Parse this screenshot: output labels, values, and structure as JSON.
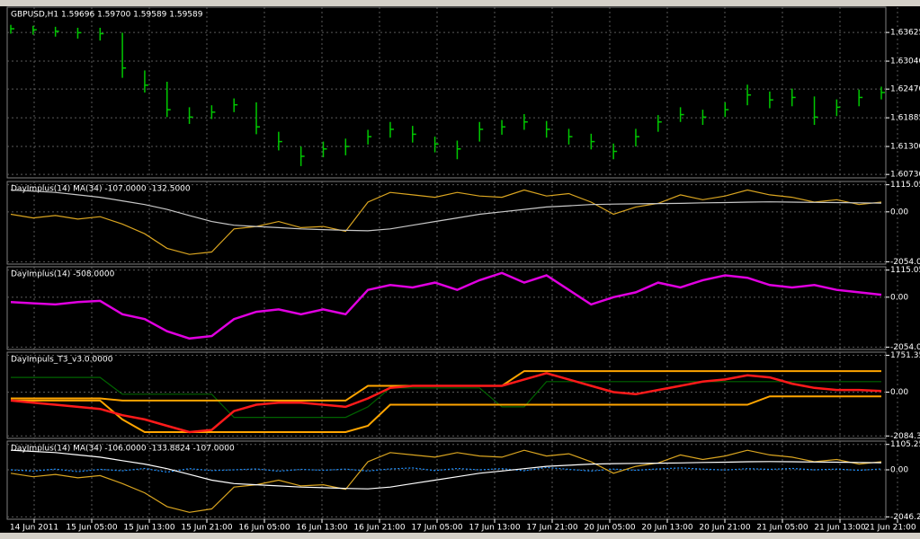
{
  "chart_data": [
    {
      "type": "ohlc",
      "title": "GBPUSD,H1  1.59696 1.59700 1.59589 1.59589",
      "color": "#00c800",
      "ylim": [
        1.6066,
        1.6414
      ],
      "yticks": [
        1.63625,
        {
          "value": 1.6304,
          "label": "1.63040"
        },
        {
          "value": 1.6247,
          "label": "1.62470"
        },
        1.61885,
        {
          "value": 1.613,
          "label": "1.61300"
        },
        {
          "value": 1.6073,
          "label": "1.60730"
        }
      ],
      "high": [
        1.6378,
        1.6376,
        1.6374,
        1.6372,
        1.6372,
        1.6362,
        1.6285,
        1.6262,
        1.621,
        1.6214,
        1.6228,
        1.622,
        1.616,
        1.613,
        1.614,
        1.6146,
        1.6164,
        1.618,
        1.6172,
        1.615,
        1.6142,
        1.618,
        1.6184,
        1.6196,
        1.6182,
        1.6166,
        1.6156,
        1.6136,
        1.6166,
        1.6194,
        1.621,
        1.6205,
        1.622,
        1.6256,
        1.6242,
        1.6248,
        1.6232,
        1.6226,
        1.6246,
        1.6252
      ],
      "low": [
        1.636,
        1.6358,
        1.6354,
        1.635,
        1.6346,
        1.627,
        1.624,
        1.619,
        1.6176,
        1.6186,
        1.62,
        1.6155,
        1.6122,
        1.609,
        1.6108,
        1.6112,
        1.6134,
        1.6148,
        1.6138,
        1.6118,
        1.6104,
        1.614,
        1.6154,
        1.6164,
        1.6148,
        1.6134,
        1.6124,
        1.6104,
        1.613,
        1.616,
        1.618,
        1.6174,
        1.619,
        1.6214,
        1.6208,
        1.6212,
        1.6174,
        1.6192,
        1.6212,
        1.6226
      ],
      "close": [
        1.637,
        1.6368,
        1.6365,
        1.6362,
        1.636,
        1.629,
        1.6255,
        1.6205,
        1.619,
        1.62,
        1.6215,
        1.617,
        1.614,
        1.611,
        1.6125,
        1.613,
        1.615,
        1.6165,
        1.6155,
        1.6135,
        1.6125,
        1.6165,
        1.617,
        1.618,
        1.6165,
        1.615,
        1.614,
        1.612,
        1.615,
        1.618,
        1.6195,
        1.619,
        1.6205,
        1.6235,
        1.6225,
        1.623,
        1.619,
        1.621,
        1.623,
        1.624
      ]
    },
    {
      "type": "line",
      "title": "DayImplus(14) MA(34) -107.0000 -132.5000",
      "ylim": [
        -2150,
        1250
      ],
      "yticks": [
        1115.05,
        {
          "value": 0,
          "label": "0.00"
        },
        -2054.05
      ],
      "series": [
        {
          "color": "#daa520",
          "values": [
            -100,
            -250,
            -150,
            -300,
            -200,
            -500,
            -900,
            -1500,
            -1750,
            -1650,
            -700,
            -600,
            -400,
            -650,
            -600,
            -800,
            400,
            800,
            700,
            600,
            800,
            650,
            600,
            900,
            650,
            750,
            400,
            -100,
            200,
            350,
            700,
            500,
            650,
            900,
            700,
            600,
            400,
            500,
            300,
            400
          ]
        },
        {
          "color": "#c8c8c8",
          "values": [
            900,
            850,
            800,
            700,
            600,
            450,
            300,
            100,
            -150,
            -400,
            -550,
            -600,
            -650,
            -700,
            -730,
            -760,
            -780,
            -700,
            -550,
            -400,
            -250,
            -100,
            0,
            100,
            200,
            250,
            300,
            320,
            330,
            340,
            350,
            370,
            380,
            400,
            410,
            400,
            390,
            380,
            370,
            360
          ]
        }
      ]
    },
    {
      "type": "line",
      "title": "DayImplus(14) -508.0000",
      "ylim": [
        -2150,
        1250
      ],
      "yticks": [
        1115.05,
        {
          "value": 0,
          "label": "0.00"
        },
        -2054.05
      ],
      "series": [
        {
          "color": "#e000e0",
          "width": 2.5,
          "values": [
            -200,
            -250,
            -300,
            -200,
            -150,
            -700,
            -900,
            -1400,
            -1700,
            -1600,
            -900,
            -600,
            -500,
            -700,
            -500,
            -700,
            300,
            500,
            400,
            600,
            300,
            700,
            1000,
            600,
            900,
            300,
            -300,
            0,
            200,
            600,
            400,
            700,
            900,
            800,
            500,
            400,
            500,
            300,
            200,
            100
          ]
        }
      ]
    },
    {
      "type": "line",
      "title": "DayImpuls_T3_v3.0.0000",
      "ylim": [
        -2200,
        1900
      ],
      "yticks": [
        1751.35,
        {
          "value": 0,
          "label": "0.00"
        },
        -2084.35
      ],
      "series": [
        {
          "color": "#006400",
          "values": [
            700,
            700,
            700,
            700,
            700,
            -100,
            -100,
            -100,
            -100,
            -100,
            -1200,
            -1200,
            -1200,
            -1200,
            -1200,
            -1200,
            -700,
            200,
            200,
            200,
            200,
            200,
            -700,
            -700,
            500,
            500,
            500,
            500,
            500,
            500,
            500,
            500,
            500,
            500,
            500,
            500,
            500,
            500,
            500,
            500
          ]
        },
        {
          "color": "#ffa500",
          "width": 2,
          "values": [
            -300,
            -300,
            -300,
            -300,
            -300,
            -400,
            -400,
            -400,
            -400,
            -400,
            -400,
            -400,
            -400,
            -400,
            -400,
            -400,
            300,
            300,
            300,
            300,
            300,
            300,
            300,
            1000,
            1000,
            1000,
            1000,
            1000,
            1000,
            1000,
            1000,
            1000,
            1000,
            1000,
            1000,
            1000,
            1000,
            1000,
            1000,
            1000
          ]
        },
        {
          "color": "#ffa500",
          "width": 2,
          "values": [
            -400,
            -400,
            -400,
            -400,
            -400,
            -1300,
            -1900,
            -1900,
            -1900,
            -1900,
            -1900,
            -1900,
            -1900,
            -1900,
            -1900,
            -1900,
            -1600,
            -600,
            -600,
            -600,
            -600,
            -600,
            -600,
            -600,
            -600,
            -600,
            -600,
            -600,
            -600,
            -600,
            -600,
            -600,
            -600,
            -600,
            -200,
            -200,
            -200,
            -200,
            -200,
            -200
          ]
        },
        {
          "color": "#ff1a1a",
          "width": 2.5,
          "values": [
            -400,
            -500,
            -600,
            -700,
            -800,
            -1100,
            -1300,
            -1600,
            -1900,
            -1800,
            -900,
            -600,
            -500,
            -500,
            -600,
            -700,
            -300,
            200,
            300,
            300,
            300,
            300,
            300,
            600,
            900,
            600,
            300,
            0,
            -100,
            100,
            300,
            500,
            600,
            800,
            700,
            400,
            200,
            100,
            100,
            50
          ]
        }
      ]
    },
    {
      "type": "line",
      "title": "DayImplus(14) MA(34) -106.0000 -133.8824 -107.0000",
      "ylim": [
        -2150,
        1250
      ],
      "yticks": [
        1105.25,
        {
          "value": 0,
          "label": "0.00"
        },
        -2046.25
      ],
      "series": [
        {
          "color": "#1e90ff",
          "dash": true,
          "values": [
            0,
            -50,
            30,
            -80,
            20,
            -40,
            60,
            -100,
            50,
            -30,
            0,
            40,
            -60,
            20,
            -20,
            30,
            -50,
            40,
            80,
            -30,
            60,
            0,
            50,
            -40,
            100,
            20,
            -50,
            30,
            -20,
            40,
            80,
            30,
            -10,
            50,
            20,
            60,
            0,
            30,
            -20,
            40
          ]
        },
        {
          "color": "#daa520",
          "values": [
            -150,
            -300,
            -200,
            -350,
            -250,
            -600,
            -1000,
            -1600,
            -1850,
            -1700,
            -750,
            -650,
            -450,
            -700,
            -650,
            -850,
            350,
            750,
            650,
            550,
            750,
            600,
            550,
            850,
            600,
            700,
            350,
            -150,
            150,
            300,
            650,
            450,
            600,
            850,
            650,
            550,
            350,
            450,
            250,
            350
          ]
        },
        {
          "color": "#ffffff",
          "values": [
            850,
            800,
            750,
            650,
            550,
            400,
            250,
            50,
            -200,
            -450,
            -600,
            -650,
            -700,
            -750,
            -780,
            -810,
            -830,
            -750,
            -600,
            -450,
            -300,
            -150,
            -50,
            50,
            150,
            200,
            250,
            270,
            280,
            290,
            300,
            320,
            330,
            350,
            360,
            350,
            340,
            330,
            320,
            310
          ]
        }
      ]
    }
  ],
  "time_axis": {
    "labels": [
      "14 Jun 2011",
      "15 Jun 05:00",
      "15 Jun 13:00",
      "15 Jun 21:00",
      "16 Jun 05:00",
      "16 Jun 13:00",
      "16 Jun 21:00",
      "17 Jun 05:00",
      "17 Jun 13:00",
      "17 Jun 21:00",
      "20 Jun 05:00",
      "20 Jun 13:00",
      "20 Jun 21:00",
      "21 Jun 05:00",
      "21 Jun 13:00",
      "21 Jun 21:00"
    ]
  }
}
